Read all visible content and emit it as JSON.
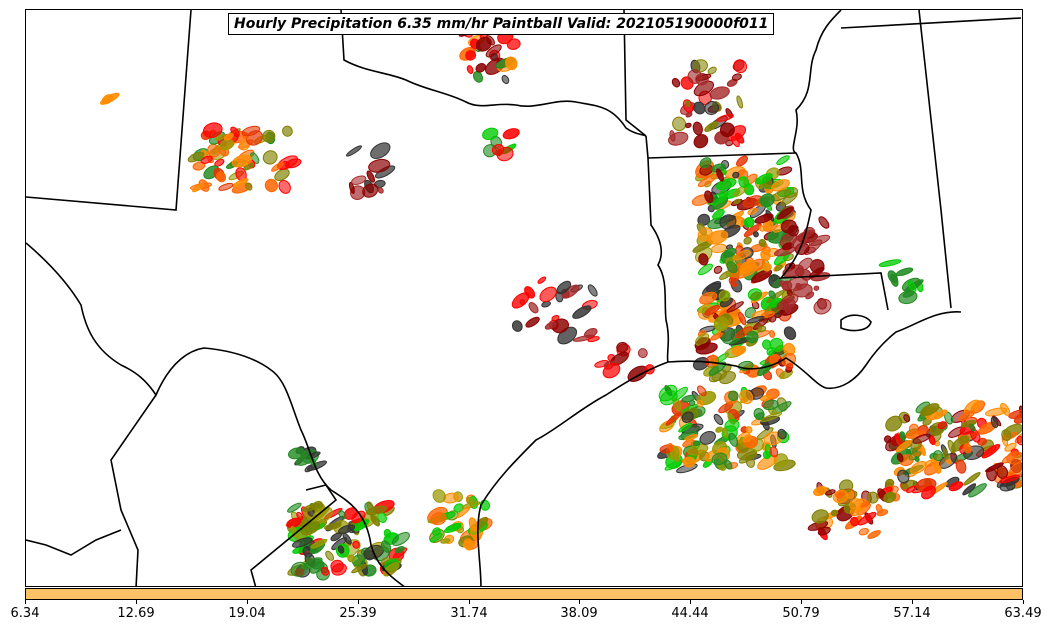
{
  "title": "Hourly Precipitation 6.35 mm/hr Paintball Valid: 202105190000f011",
  "colorbar": {
    "color": "#ffc166",
    "tick_labels": [
      "6.34",
      "12.69",
      "19.04",
      "25.39",
      "31.74",
      "38.09",
      "44.44",
      "50.79",
      "57.14",
      "63.49"
    ]
  },
  "colors": {
    "borders": "#000000",
    "paintball": [
      "#00cc00",
      "#228b22",
      "#808000",
      "#999900",
      "#ff8c00",
      "#ff6600",
      "#e63300",
      "#ff0000",
      "#8b0000",
      "#a52a2a",
      "#333333"
    ]
  }
}
